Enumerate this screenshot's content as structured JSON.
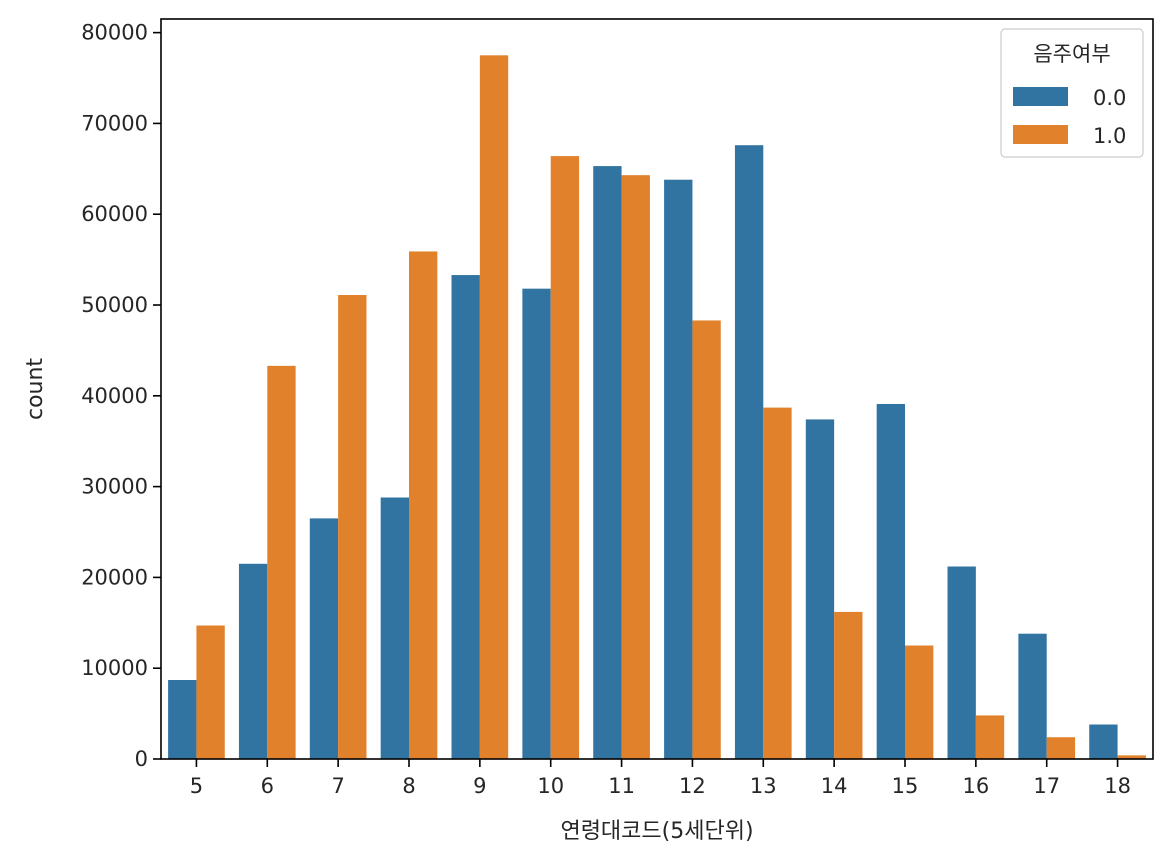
{
  "chart_data": {
    "type": "bar",
    "categories": [
      "5",
      "6",
      "7",
      "8",
      "9",
      "10",
      "11",
      "12",
      "13",
      "14",
      "15",
      "16",
      "17",
      "18"
    ],
    "series": [
      {
        "name": "0.0",
        "color": "#3274a1",
        "values": [
          8700,
          21500,
          26500,
          28800,
          53300,
          51800,
          65300,
          63800,
          67600,
          37400,
          39100,
          21200,
          13800,
          3800
        ]
      },
      {
        "name": "1.0",
        "color": "#e1812c",
        "values": [
          14700,
          43300,
          51100,
          55900,
          77500,
          66400,
          64300,
          48300,
          38700,
          16200,
          12500,
          4800,
          2400,
          400
        ]
      }
    ],
    "xlabel": "연령대코드(5세단위)",
    "ylabel": "count",
    "ylim": [
      0,
      81500
    ],
    "yticks": [
      "0",
      "10000",
      "20000",
      "30000",
      "40000",
      "50000",
      "60000",
      "70000",
      "80000"
    ],
    "ytick_values": [
      0,
      10000,
      20000,
      30000,
      40000,
      50000,
      60000,
      70000,
      80000
    ],
    "legend_title": "음주여부",
    "legend_position": "top-right",
    "grid": false
  }
}
